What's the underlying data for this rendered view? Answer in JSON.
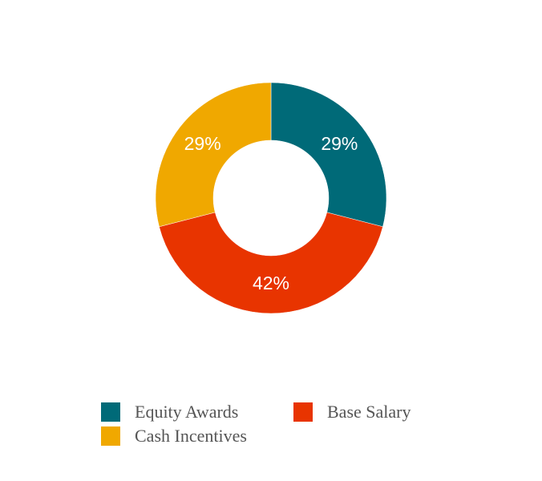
{
  "chart_data": {
    "type": "donut",
    "categories": [
      "Equity Awards",
      "Base Salary",
      "Cash Incentives"
    ],
    "values": [
      29,
      42,
      29
    ],
    "value_labels": [
      "29%",
      "42%",
      "29%"
    ],
    "colors": [
      "#006a78",
      "#e83400",
      "#f0a800"
    ]
  }
}
